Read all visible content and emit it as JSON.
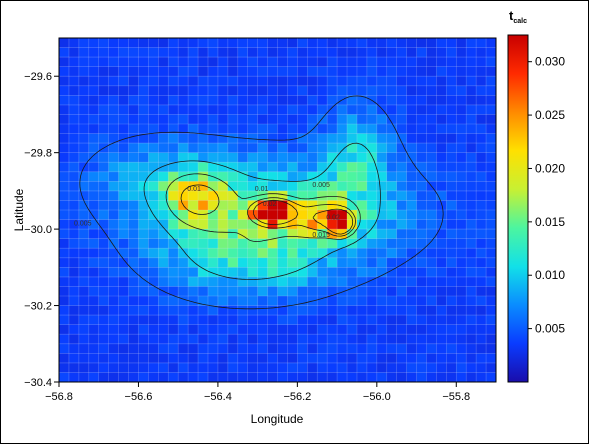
{
  "chart_data": {
    "type": "heatmap",
    "title": "",
    "xlabel": "Longitude",
    "ylabel": "Latitude",
    "xlim": [
      -56.8,
      -55.7
    ],
    "ylim": [
      -30.4,
      -29.5
    ],
    "x_ticks": [
      -56.8,
      -56.6,
      -56.4,
      -56.2,
      -56.0,
      -55.8
    ],
    "x_tick_labels": [
      "−56.8",
      "−56.6",
      "−56.4",
      "−56.2",
      "−56.0",
      "−55.8"
    ],
    "y_ticks": [
      -30.4,
      -30.2,
      -30.0,
      -29.8,
      -29.6
    ],
    "y_tick_labels": [
      "−30.4",
      "−30.2",
      "−30.0",
      "−29.8",
      "−29.6"
    ],
    "colorbar": {
      "title": "t",
      "title_subscript": "calc",
      "range": [
        0,
        0.0325
      ],
      "ticks": [
        0.005,
        0.01,
        0.015,
        0.02,
        0.025,
        0.03
      ],
      "tick_labels": [
        "0.005",
        "0.010",
        "0.015",
        "0.020",
        "0.025",
        "0.030"
      ],
      "colormap": [
        "#1a0dab",
        "#0a3cff",
        "#0a8cff",
        "#12e0e8",
        "#4cf5a0",
        "#c8f032",
        "#ffe000",
        "#ff8a00",
        "#ff2a00",
        "#c80000"
      ]
    },
    "grid": true,
    "grid_color": "#e0e0f0",
    "cell_count_x": 44,
    "cell_count_y": 36,
    "background_level": 0.0035,
    "hotspots": [
      {
        "lon": -56.26,
        "lat": -29.955,
        "peak": 0.031,
        "spread_lon": 0.035,
        "spread_lat": 0.022
      },
      {
        "lon": -56.09,
        "lat": -29.985,
        "peak": 0.0325,
        "spread_lon": 0.018,
        "spread_lat": 0.018
      },
      {
        "lon": -56.13,
        "lat": -29.97,
        "peak": 0.014,
        "spread_lon": 0.05,
        "spread_lat": 0.03
      },
      {
        "lon": -56.45,
        "lat": -29.92,
        "peak": 0.012,
        "spread_lon": 0.06,
        "spread_lat": 0.05
      },
      {
        "lon": -56.25,
        "lat": -29.96,
        "peak": 0.009,
        "spread_lon": 0.22,
        "spread_lat": 0.1
      },
      {
        "lon": -56.33,
        "lat": -30.08,
        "peak": 0.006,
        "spread_lon": 0.14,
        "spread_lat": 0.07
      },
      {
        "lon": -56.05,
        "lat": -29.82,
        "peak": 0.006,
        "spread_lon": 0.06,
        "spread_lat": 0.1
      },
      {
        "lon": -56.55,
        "lat": -29.86,
        "peak": 0.004,
        "spread_lon": 0.12,
        "spread_lat": 0.07
      }
    ],
    "contour_levels": [
      0.005,
      0.01,
      0.015,
      0.02,
      0.025
    ],
    "contour_labels": [
      {
        "text": "0.01",
        "lon": -56.46,
        "lat": -29.9
      },
      {
        "text": "0.01",
        "lon": -56.29,
        "lat": -29.9
      },
      {
        "text": "0.005",
        "lon": -56.14,
        "lat": -29.89
      },
      {
        "text": "0.02",
        "lon": -56.27,
        "lat": -29.94
      },
      {
        "text": "0.02",
        "lon": -56.11,
        "lat": -29.975
      },
      {
        "text": "0.015",
        "lon": -56.14,
        "lat": -30.02
      },
      {
        "text": "0.005",
        "lon": -56.74,
        "lat": -29.99
      }
    ]
  }
}
